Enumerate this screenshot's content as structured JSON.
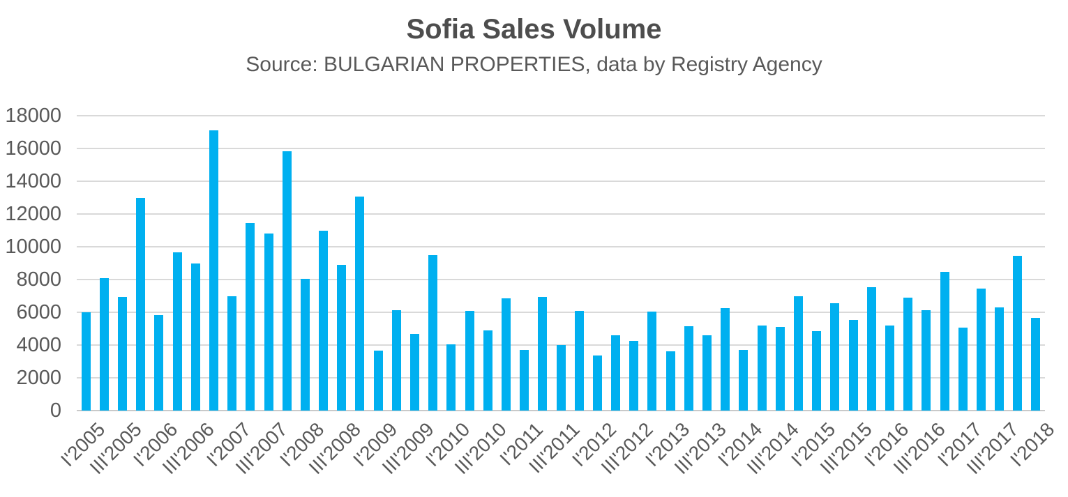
{
  "title": "Sofia Sales Volume",
  "subtitle": "Source: BULGARIAN PROPERTIES, data by Registry Agency",
  "colors": {
    "bar": "#00B0F0",
    "grid": "#D9D9D9",
    "axis": "#C9C9C9",
    "text": "#595959",
    "title": "#4D4D4D",
    "background": "#FFFFFF"
  },
  "chart_data": {
    "type": "bar",
    "title": "Sofia Sales Volume",
    "subtitle": "Source: BULGARIAN PROPERTIES, data by Registry Agency",
    "xlabel": "",
    "ylabel": "",
    "ylim": [
      0,
      18000
    ],
    "y_ticks": [
      0,
      2000,
      4000,
      6000,
      8000,
      10000,
      12000,
      14000,
      16000,
      18000
    ],
    "grid": true,
    "legend": false,
    "bar_color": "#00B0F0",
    "x_tick_every": 2,
    "x_tick_labels": [
      "I'2005",
      "III'2005",
      "I'2006",
      "III'2006",
      "I'2007",
      "III'2007",
      "I'2008",
      "III'2008",
      "I'2009",
      "III'2009",
      "I'2010",
      "III'2010",
      "I'2011",
      "III'2011",
      "I'2012",
      "III'2012",
      "I'2013",
      "III'2013",
      "I'2014",
      "III'2014",
      "I'2015",
      "III'2015",
      "I'2016",
      "III'2016",
      "I'2017",
      "III'2017",
      "I'2018"
    ],
    "categories": [
      "I'2005",
      "II'2005",
      "III'2005",
      "IV'2005",
      "I'2006",
      "II'2006",
      "III'2006",
      "IV'2006",
      "I'2007",
      "II'2007",
      "III'2007",
      "IV'2007",
      "I'2008",
      "II'2008",
      "III'2008",
      "IV'2008",
      "I'2009",
      "II'2009",
      "III'2009",
      "IV'2009",
      "I'2010",
      "II'2010",
      "III'2010",
      "IV'2010",
      "I'2011",
      "II'2011",
      "III'2011",
      "IV'2011",
      "I'2012",
      "II'2012",
      "III'2012",
      "IV'2012",
      "I'2013",
      "II'2013",
      "III'2013",
      "IV'2013",
      "I'2014",
      "II'2014",
      "III'2014",
      "IV'2014",
      "I'2015",
      "II'2015",
      "III'2015",
      "IV'2015",
      "I'2016",
      "II'2016",
      "III'2016",
      "IV'2016",
      "I'2017",
      "II'2017",
      "III'2017",
      "IV'2017",
      "I'2018"
    ],
    "values": [
      6000,
      8100,
      6950,
      13000,
      5850,
      9650,
      9000,
      17100,
      7000,
      11450,
      10800,
      15850,
      8050,
      11000,
      8900,
      13050,
      3650,
      6150,
      4700,
      9500,
      4050,
      6100,
      4900,
      6850,
      3700,
      6950,
      4000,
      6100,
      3350,
      4600,
      4250,
      6050,
      3600,
      5150,
      4600,
      6250,
      3700,
      5200,
      5100,
      7000,
      4850,
      6550,
      5550,
      7550,
      5200,
      6900,
      6150,
      8450,
      5050,
      7450,
      6300,
      9450,
      5650
    ]
  }
}
